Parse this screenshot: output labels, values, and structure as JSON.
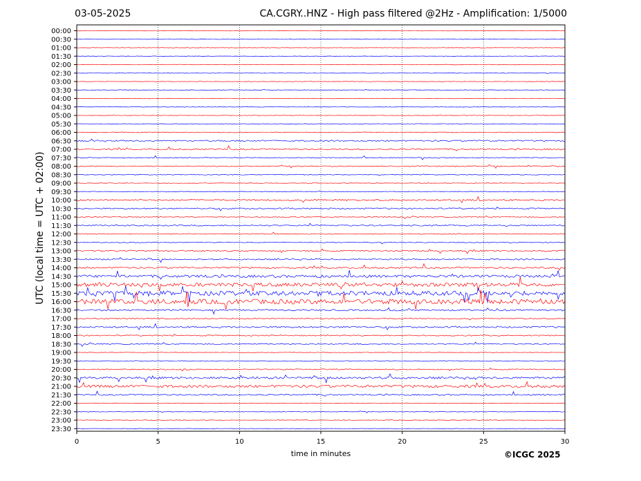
{
  "header": {
    "date": "03-05-2025",
    "title": "CA.CGRY..HNZ - High pass filtered @2Hz - Amplification: 1/5000"
  },
  "footer": {
    "copyright": "©ICGC 2025"
  },
  "chart_data": {
    "type": "line",
    "title": "CA.CGRY..HNZ - High pass filtered @2Hz - Amplification: 1/5000",
    "xlabel": "time in minutes",
    "ylabel": "UTC (local time = UTC + 02:00)",
    "xlim": [
      0,
      30
    ],
    "x_ticks": [
      0,
      5,
      10,
      15,
      20,
      25,
      30
    ],
    "vertical_grid": "dotted",
    "row_colors": [
      "#ff0000",
      "#0000ff"
    ],
    "rows": [
      "00:00",
      "00:30",
      "01:00",
      "01:30",
      "02:00",
      "02:30",
      "03:00",
      "03:30",
      "04:00",
      "04:30",
      "05:00",
      "05:30",
      "06:00",
      "06:30",
      "07:00",
      "07:30",
      "08:00",
      "08:30",
      "09:00",
      "09:30",
      "10:00",
      "10:30",
      "11:00",
      "11:30",
      "12:00",
      "12:30",
      "13:00",
      "13:30",
      "14:00",
      "14:30",
      "15:00",
      "15:30",
      "16:00",
      "16:30",
      "17:00",
      "17:30",
      "18:00",
      "18:30",
      "19:00",
      "19:30",
      "20:00",
      "20:30",
      "21:00",
      "21:30",
      "22:00",
      "22:30",
      "23:00",
      "23:30"
    ],
    "activity": [
      0.05,
      0.05,
      0.08,
      0.05,
      0.12,
      0.05,
      0.05,
      0.15,
      0.06,
      0.05,
      0.05,
      0.12,
      0.25,
      0.45,
      0.45,
      0.3,
      0.35,
      0.25,
      0.15,
      0.15,
      0.5,
      0.45,
      0.3,
      0.45,
      0.3,
      0.3,
      0.45,
      0.45,
      0.5,
      0.7,
      0.85,
      0.95,
      1.0,
      0.5,
      0.35,
      0.5,
      0.4,
      0.4,
      0.15,
      0.2,
      0.35,
      0.6,
      0.7,
      0.45,
      0.2,
      0.15,
      0.2,
      0.05
    ]
  }
}
